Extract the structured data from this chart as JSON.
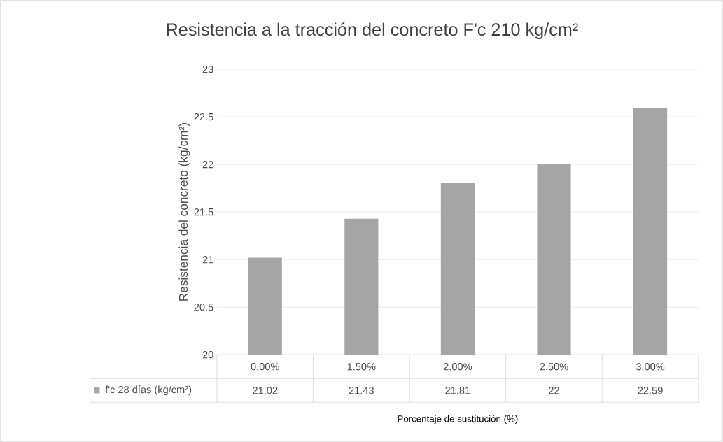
{
  "chart_data": {
    "type": "bar",
    "title": "Resistencia a la tracción del concreto F'c 210 kg/cm²",
    "xlabel": "Porcentaje de sustitución (%)",
    "ylabel": "Resistencia del concreto (kg/cm²)",
    "categories": [
      "0.00%",
      "1.50%",
      "2.00%",
      "2.50%",
      "3.00%"
    ],
    "series": [
      {
        "name": "f'c 28 días (kg/cm²)",
        "color": "#a5a5a5",
        "values": [
          21.02,
          21.43,
          21.81,
          22,
          22.59
        ]
      }
    ],
    "ylim": [
      20,
      23
    ],
    "yticks": [
      20,
      20.5,
      21,
      21.5,
      22,
      22.5,
      23
    ],
    "grid": "y",
    "legend": "bottom",
    "data_labels": true
  }
}
